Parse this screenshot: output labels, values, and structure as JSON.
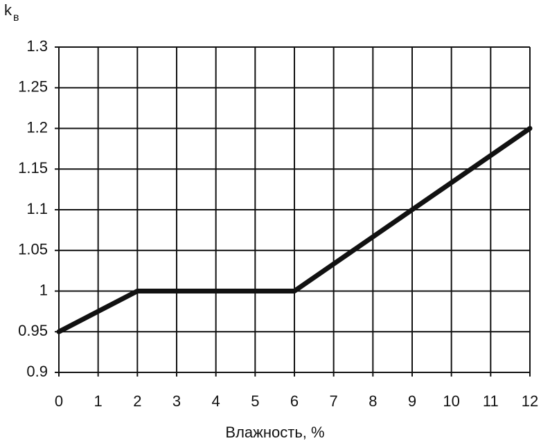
{
  "chart_data": {
    "type": "line",
    "x_label": "Влажность, %",
    "y_label": "k",
    "y_label_sub": "в",
    "x": [
      0,
      2,
      6,
      12
    ],
    "values": [
      0.95,
      1.0,
      1.0,
      1.2
    ],
    "color": "#111111",
    "xlim": [
      0,
      12
    ],
    "xticks": [
      0,
      1,
      2,
      3,
      4,
      5,
      6,
      7,
      8,
      9,
      10,
      11,
      12
    ],
    "ylim": [
      0.9,
      1.3
    ],
    "yticks": [
      0.9,
      0.95,
      1,
      1.05,
      1.1,
      1.15,
      1.2,
      1.25,
      1.3
    ],
    "grid": true
  }
}
